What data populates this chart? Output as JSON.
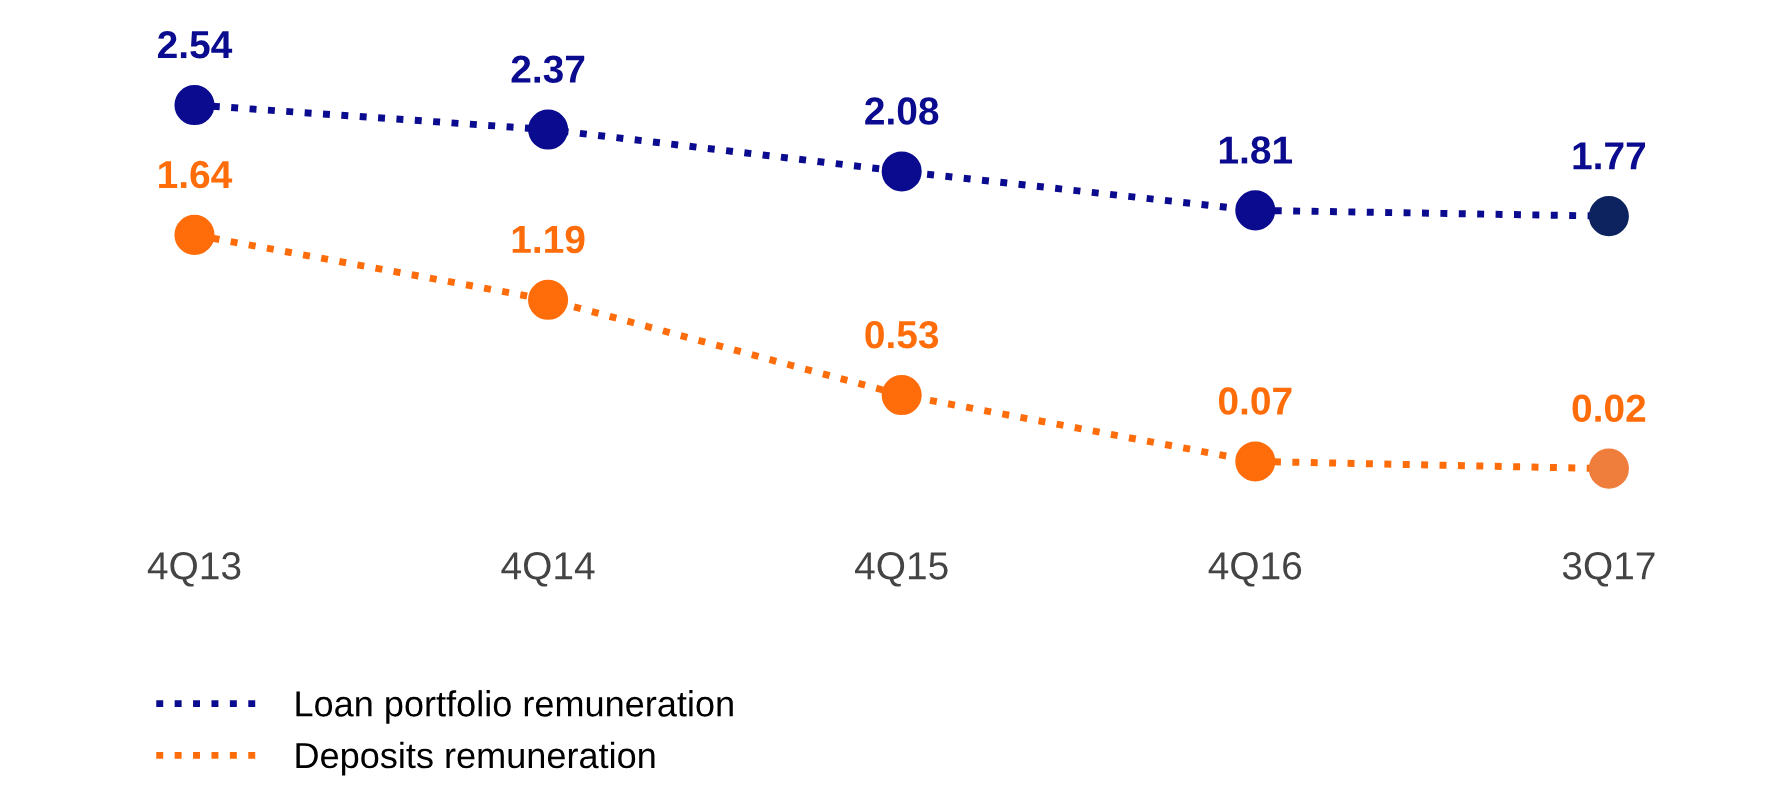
{
  "chart_data": {
    "type": "line",
    "categories": [
      "4Q13",
      "4Q14",
      "4Q15",
      "4Q16",
      "3Q17"
    ],
    "series": [
      {
        "name": "Loan portfolio remuneration",
        "color": "#0b0b8f",
        "colors": [
          "#0b0b8f",
          "#0b0b8f",
          "#0b0b8f",
          "#0b0b8f",
          "#0d2360"
        ],
        "values": [
          2.54,
          2.37,
          2.08,
          1.81,
          1.77
        ]
      },
      {
        "name": "Deposits remuneration",
        "color": "#ff6c0a",
        "colors": [
          "#ff6c0a",
          "#ff6c0a",
          "#ff6c0a",
          "#ff6c0a",
          "#ef7d3b"
        ],
        "values": [
          1.64,
          1.19,
          0.53,
          0.07,
          0.02
        ]
      }
    ],
    "data_labels": true,
    "marker": "circle",
    "line_style": "dotted",
    "grid": false,
    "legend": "bottom left",
    "tick_labels": "x"
  }
}
